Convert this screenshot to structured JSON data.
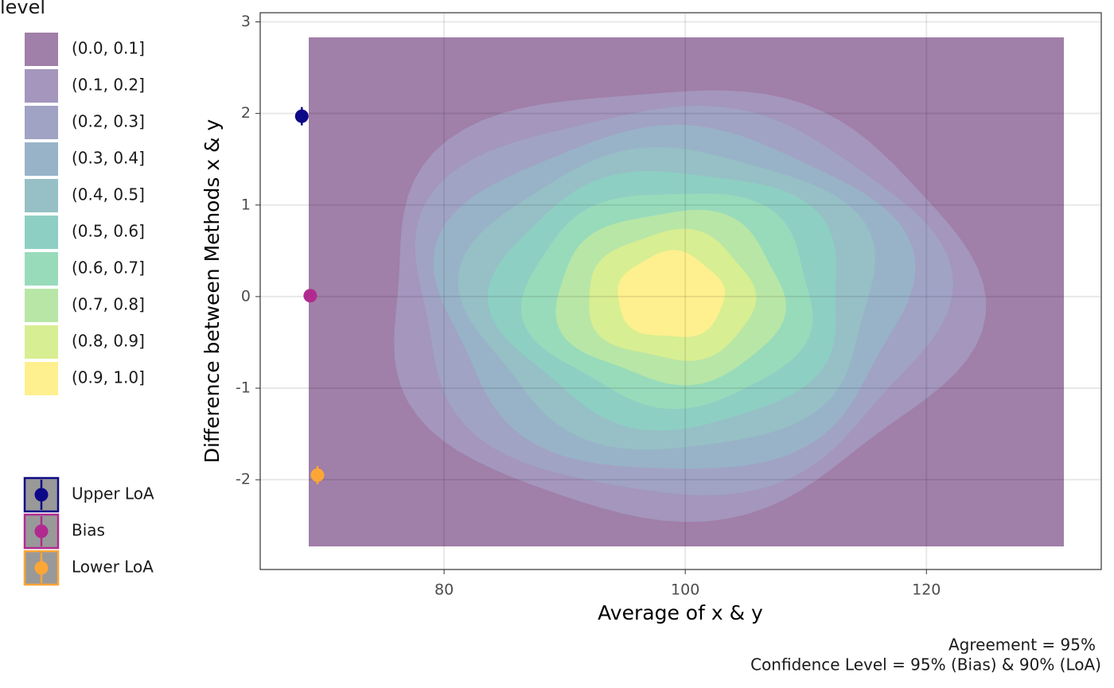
{
  "chart_data": {
    "type": "scatter",
    "x_label": "Average of x & y",
    "y_label": "Difference between Methods x & y",
    "xlim": [
      64.75,
      134.5
    ],
    "xticks": [
      80,
      100,
      120
    ],
    "ylim": [
      -2.98,
      3.1
    ],
    "yticks": [
      -2,
      -1,
      0,
      1,
      2,
      3
    ],
    "grid": true,
    "series": [
      {
        "name": "Upper LoA",
        "color": "#0d0887",
        "x": [
          68.2
        ],
        "values": [
          1.97
        ],
        "errors": [
          0.1
        ]
      },
      {
        "name": "Bias",
        "color": "#b12a90",
        "x": [
          68.9
        ],
        "values": [
          0.01
        ],
        "errors": [
          0.03
        ]
      },
      {
        "name": "Lower LoA",
        "color": "#fca636",
        "x": [
          69.5
        ],
        "values": [
          -1.95
        ],
        "errors": [
          0.1
        ]
      }
    ],
    "fill_legend": {
      "title": "level",
      "labels": [
        "(0.0, 0.1]",
        "(0.1, 0.2]",
        "(0.2, 0.3]",
        "(0.3, 0.4]",
        "(0.4, 0.5]",
        "(0.5, 0.6]",
        "(0.6, 0.7]",
        "(0.7, 0.8]",
        "(0.8, 0.9]",
        "(0.9, 1.0]"
      ],
      "colors": [
        "#a07fa8",
        "#a496bd",
        "#a0a3c4",
        "#98b3c8",
        "#96c0c5",
        "#8ecfc3",
        "#98dbbb",
        "#b8e6a6",
        "#d8ee92",
        "#fef08f"
      ]
    },
    "captions": [
      "Agreement = 95%",
      "Confidence Level = 95% (Bias) & 90% (LoA)"
    ]
  }
}
